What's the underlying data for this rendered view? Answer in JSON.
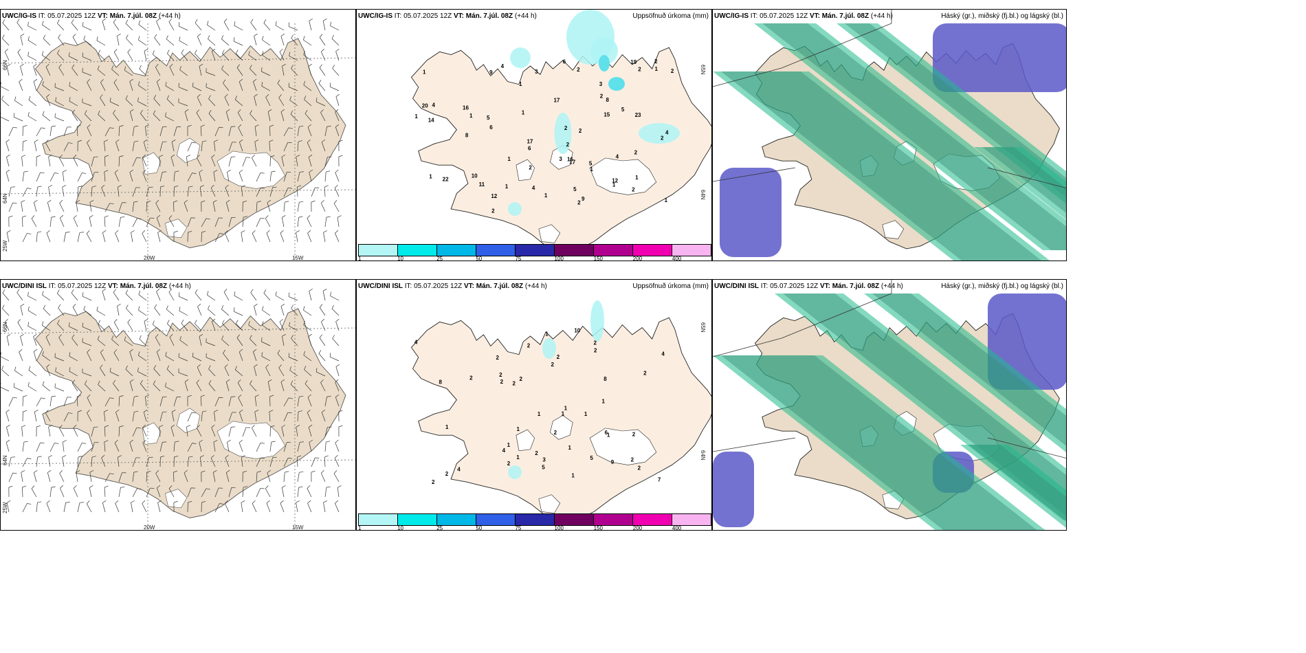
{
  "rows": [
    {
      "model": "UWC/IG-IS",
      "it_label": "IT:",
      "it_value": "05.07.2025 12Z",
      "vt_label": "VT:",
      "vt_value": "Mán. 7.júl. 08Z",
      "lead": "(+44 h)"
    },
    {
      "model": "UWC/DINI ISL",
      "it_label": "IT:",
      "it_value": "05.07.2025 12Z",
      "vt_label": "VT:",
      "vt_value": "Mán. 7.júl. 08Z",
      "lead": "(+44 h)"
    }
  ],
  "precip_title": "Uppsöfnuð úrkoma (mm)",
  "cloud_title": "Háský (gr.), miðský (fj.bl.) og lágský (bl.)",
  "wind_axis": {
    "lat_labels": [
      "66N",
      "64N",
      "25W"
    ],
    "lon_labels": [
      "20W",
      "15W"
    ],
    "right_lat_labels": [
      "65N",
      "64N"
    ]
  },
  "colorbar": {
    "labels": [
      "1",
      "10",
      "25",
      "50",
      "75",
      "100",
      "150",
      "200",
      "400"
    ],
    "colors": [
      "#b4f5f5",
      "#00eaea",
      "#00b8e8",
      "#3060e8",
      "#2828a8",
      "#700060",
      "#b00090",
      "#f000b0",
      "#f8b4f0"
    ]
  },
  "precip_values_top": [
    "9",
    "9",
    "10",
    "16",
    "5",
    "5",
    "2",
    "6",
    "6",
    "11",
    "22",
    "20",
    "17",
    "16",
    "15",
    "19",
    "14",
    "2",
    "4",
    "23",
    "12",
    "17",
    "12",
    "1",
    "2",
    "8",
    "8",
    "1",
    "1",
    "1",
    "1",
    "2",
    "3",
    "1",
    "4",
    "4",
    "6",
    "4",
    "4",
    "5",
    "3",
    "2",
    "2",
    "1",
    "2",
    "2",
    "3",
    "2",
    "2",
    "1",
    "1",
    "17",
    "5",
    "2",
    "1",
    "1",
    "2",
    "1",
    "2",
    "1",
    "1",
    "2"
  ],
  "precip_values_bottom": [
    "2",
    "2",
    "1",
    "2",
    "2",
    "10",
    "2",
    "2",
    "9",
    "4",
    "7",
    "2",
    "1",
    "1",
    "5",
    "2",
    "6",
    "1",
    "1",
    "4",
    "4",
    "4",
    "5",
    "1",
    "1",
    "2",
    "2",
    "2",
    "2",
    "1",
    "2",
    "1",
    "2",
    "2",
    "1",
    "1",
    "3",
    "8",
    "8",
    "2",
    "2",
    "1",
    "2",
    "2",
    "1",
    "2"
  ]
}
